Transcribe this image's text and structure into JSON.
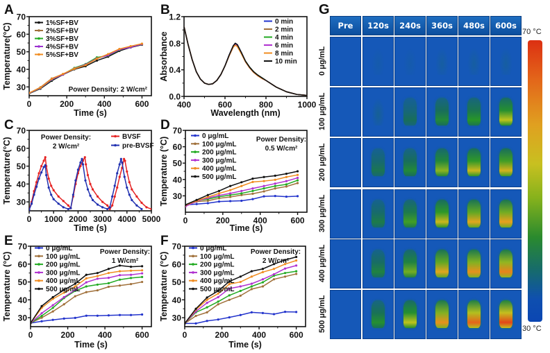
{
  "figure": {
    "panels": [
      "A",
      "B",
      "C",
      "D",
      "E",
      "F",
      "G"
    ]
  },
  "chart_data": [
    {
      "id": "A",
      "type": "line",
      "panel_letter": "A",
      "title": "",
      "xlabel": "Time (s)",
      "ylabel": "Temperature(°C)",
      "xlim": [
        0,
        650
      ],
      "ylim": [
        25,
        70
      ],
      "xticks": [
        0,
        200,
        400,
        600
      ],
      "yticks": [
        30,
        40,
        50,
        60,
        70
      ],
      "annotation": "Power Density: 2 W/cm²",
      "legend_position": "top-left",
      "x": [
        0,
        60,
        120,
        180,
        240,
        300,
        360,
        420,
        480,
        540,
        600
      ],
      "series": [
        {
          "name": "1%SF+BV",
          "color": "#111111",
          "values": [
            26.2,
            29.0,
            33.5,
            37.0,
            40.0,
            41.8,
            45.0,
            47.2,
            50.5,
            52.5,
            54.0
          ]
        },
        {
          "name": "2%SF+BV",
          "color": "#a0703a",
          "values": [
            26.5,
            29.8,
            34.8,
            37.3,
            40.2,
            42.5,
            46.0,
            48.5,
            51.5,
            53.0,
            54.5
          ]
        },
        {
          "name": "3%SF+BV",
          "color": "#22aa22",
          "values": [
            26.3,
            29.3,
            34.0,
            37.2,
            40.8,
            43.0,
            46.8,
            47.8,
            51.0,
            52.8,
            54.2
          ]
        },
        {
          "name": "4%SF+BV",
          "color": "#9b30d0",
          "values": [
            26.4,
            29.4,
            34.2,
            37.1,
            40.5,
            42.7,
            46.3,
            48.0,
            51.2,
            52.6,
            54.3
          ]
        },
        {
          "name": "5%SF+BV",
          "color": "#f08c20",
          "values": [
            26.6,
            29.6,
            34.6,
            37.4,
            40.4,
            42.4,
            46.1,
            48.7,
            51.6,
            53.2,
            54.6
          ]
        }
      ]
    },
    {
      "id": "B",
      "type": "line",
      "panel_letter": "B",
      "title": "",
      "xlabel": "Wavelength (nm)",
      "ylabel": "Absorbance",
      "xlim": [
        400,
        1000
      ],
      "ylim": [
        0,
        1.2
      ],
      "xticks": [
        400,
        600,
        800,
        1000
      ],
      "yticks": [
        0.0,
        0.4,
        0.8,
        1.2
      ],
      "ytick_labels": [
        "0.0",
        "0.4",
        "0.8",
        "1.2"
      ],
      "legend_position": "top-right",
      "x": [
        400,
        420,
        440,
        460,
        480,
        500,
        520,
        540,
        560,
        580,
        600,
        620,
        640,
        650,
        660,
        680,
        700,
        720,
        740,
        760,
        780,
        800,
        850,
        900,
        950,
        1000
      ],
      "series": [
        {
          "name": "0 min",
          "color": "#2233cc",
          "values": [
            1.05,
            0.78,
            0.55,
            0.37,
            0.26,
            0.2,
            0.18,
            0.19,
            0.24,
            0.33,
            0.46,
            0.62,
            0.76,
            0.8,
            0.78,
            0.66,
            0.53,
            0.44,
            0.37,
            0.32,
            0.28,
            0.24,
            0.14,
            0.07,
            0.03,
            0.015
          ]
        },
        {
          "name": "2 min",
          "color": "#a0703a",
          "values": [
            1.05,
            0.78,
            0.55,
            0.37,
            0.26,
            0.2,
            0.18,
            0.19,
            0.24,
            0.33,
            0.46,
            0.61,
            0.75,
            0.79,
            0.77,
            0.65,
            0.53,
            0.44,
            0.37,
            0.32,
            0.28,
            0.24,
            0.14,
            0.07,
            0.03,
            0.015
          ]
        },
        {
          "name": "4 min",
          "color": "#22aa22",
          "values": [
            1.05,
            0.78,
            0.55,
            0.37,
            0.26,
            0.2,
            0.18,
            0.19,
            0.24,
            0.33,
            0.46,
            0.61,
            0.75,
            0.79,
            0.77,
            0.65,
            0.53,
            0.44,
            0.37,
            0.32,
            0.28,
            0.24,
            0.14,
            0.07,
            0.03,
            0.015
          ]
        },
        {
          "name": "6 min",
          "color": "#b030d0",
          "values": [
            1.05,
            0.78,
            0.55,
            0.37,
            0.26,
            0.2,
            0.18,
            0.19,
            0.24,
            0.33,
            0.46,
            0.61,
            0.74,
            0.78,
            0.76,
            0.65,
            0.52,
            0.43,
            0.36,
            0.31,
            0.27,
            0.24,
            0.14,
            0.07,
            0.03,
            0.015
          ]
        },
        {
          "name": "8 min",
          "color": "#f08c20",
          "values": [
            1.05,
            0.78,
            0.55,
            0.37,
            0.26,
            0.2,
            0.18,
            0.19,
            0.24,
            0.33,
            0.46,
            0.61,
            0.74,
            0.77,
            0.75,
            0.64,
            0.52,
            0.43,
            0.36,
            0.31,
            0.27,
            0.24,
            0.14,
            0.07,
            0.03,
            0.015
          ]
        },
        {
          "name": "10 min",
          "color": "#111111",
          "values": [
            1.05,
            0.78,
            0.55,
            0.37,
            0.26,
            0.2,
            0.18,
            0.19,
            0.24,
            0.33,
            0.46,
            0.62,
            0.76,
            0.8,
            0.78,
            0.66,
            0.53,
            0.44,
            0.37,
            0.32,
            0.28,
            0.24,
            0.14,
            0.07,
            0.03,
            0.015
          ]
        }
      ]
    },
    {
      "id": "C",
      "type": "line",
      "panel_letter": "C",
      "title": "",
      "xlabel": "Time (s)",
      "ylabel": "Temperature(°C)",
      "xlim": [
        0,
        5000
      ],
      "ylim": [
        25,
        70
      ],
      "xticks": [
        0,
        1000,
        2000,
        3000,
        4000,
        5000
      ],
      "yticks": [
        30,
        40,
        50,
        60,
        70
      ],
      "annotation": "Power Density:\n2 W/cm²",
      "annotation_lines": [
        "Power Density:",
        "2 W/cm²"
      ],
      "legend_position": "top-right",
      "series": [
        {
          "name": "BVSF",
          "color": "#e52222",
          "x": [
            0,
            100,
            200,
            300,
            400,
            500,
            600,
            660,
            700,
            800,
            900,
            1000,
            1200,
            1400,
            1600,
            1700,
            1800,
            1900,
            2000,
            2100,
            2200,
            2280,
            2320,
            2400,
            2500,
            2600,
            2800,
            3000,
            3200,
            3300,
            3400,
            3500,
            3600,
            3700,
            3800,
            3880,
            3920,
            4000,
            4100,
            4200,
            4400,
            4600,
            4800,
            5000
          ],
          "values": [
            25.5,
            30,
            36,
            41,
            46,
            50,
            53,
            55,
            50,
            43,
            39,
            36.5,
            33,
            30.5,
            28,
            26.5,
            33,
            40,
            46,
            50,
            53,
            55,
            51,
            45,
            40,
            37,
            33,
            30,
            28,
            26,
            28,
            33,
            38,
            44,
            49,
            54,
            53,
            47,
            41,
            37,
            33,
            29.5,
            27,
            26
          ]
        },
        {
          "name": "pre-BVSF",
          "color": "#2030b0",
          "x": [
            0,
            100,
            200,
            300,
            400,
            500,
            600,
            660,
            700,
            800,
            900,
            1000,
            1200,
            1400,
            1600,
            1700,
            1800,
            1900,
            2000,
            2100,
            2160,
            2200,
            2300,
            2400,
            2500,
            2600,
            2800,
            3000,
            3200,
            3300,
            3400,
            3500,
            3600,
            3700,
            3760,
            3800,
            3900,
            4000,
            4100,
            4200,
            4400,
            4600
          ],
          "values": [
            25.5,
            29,
            34,
            38.5,
            43,
            46.5,
            49.5,
            50.5,
            45,
            38,
            34,
            31.5,
            29,
            27,
            26,
            26.5,
            34,
            42,
            48,
            52,
            54,
            51,
            42,
            37,
            33.5,
            31,
            28.5,
            27,
            26,
            27,
            33,
            39,
            46,
            51,
            54,
            52,
            44,
            38,
            34,
            31,
            28,
            26
          ]
        }
      ]
    },
    {
      "id": "D",
      "type": "line",
      "panel_letter": "D",
      "title": "",
      "xlabel": "Time (s)",
      "ylabel": "Temperature (°C)",
      "xlim": [
        0,
        650
      ],
      "ylim": [
        20,
        70
      ],
      "xticks": [
        0,
        200,
        400,
        600
      ],
      "yticks": [
        30,
        40,
        50,
        60,
        70
      ],
      "annotation": "Power Density:\n0.5 W/cm²",
      "annotation_lines": [
        "Power Density:",
        "0.5 W/cm²"
      ],
      "legend_position": "top-left",
      "x": [
        0,
        60,
        120,
        180,
        240,
        300,
        360,
        420,
        480,
        540,
        600
      ],
      "series": [
        {
          "name": "0 μg/mL",
          "color": "#2233cc",
          "values": [
            24.5,
            25.0,
            25.5,
            26.5,
            26.8,
            27.0,
            28.0,
            29.7,
            29.9,
            29.5,
            29.8
          ]
        },
        {
          "name": "100 μg/mL",
          "color": "#a0703a",
          "values": [
            24.0,
            26.5,
            27.0,
            28.5,
            29.3,
            30.5,
            31.3,
            32.7,
            34.5,
            35.7,
            37.8
          ]
        },
        {
          "name": "200 μg/mL",
          "color": "#22aa22",
          "values": [
            24.3,
            27.2,
            28.0,
            29.5,
            30.5,
            31.5,
            33.0,
            34.5,
            36.0,
            37.0,
            39.5
          ]
        },
        {
          "name": "300 μg/mL",
          "color": "#b030d0",
          "values": [
            23.5,
            26.8,
            28.7,
            30.3,
            31.5,
            33.0,
            34.5,
            36.0,
            37.5,
            39.0,
            41.0
          ]
        },
        {
          "name": "400 μg/mL",
          "color": "#f08c20",
          "values": [
            24.2,
            27.0,
            29.3,
            31.5,
            33.5,
            36.0,
            38.5,
            39.0,
            39.8,
            41.5,
            42.8
          ]
        },
        {
          "name": "500 μg/mL",
          "color": "#111111",
          "values": [
            24.5,
            27.5,
            30.5,
            33.0,
            36.0,
            38.3,
            40.5,
            41.5,
            42.3,
            43.5,
            45.0
          ]
        }
      ]
    },
    {
      "id": "E",
      "type": "line",
      "panel_letter": "E",
      "title": "",
      "xlabel": "Time (s)",
      "ylabel": "Temperature (°C)",
      "xlim": [
        0,
        650
      ],
      "ylim": [
        25,
        70
      ],
      "xticks": [
        0,
        200,
        400,
        600
      ],
      "yticks": [
        30,
        40,
        50,
        60,
        70
      ],
      "annotation": "Power Density:\n1 W/cm²",
      "annotation_lines": [
        "Power Density:",
        "1 W/cm²"
      ],
      "legend_position": "top-left",
      "x": [
        0,
        60,
        120,
        180,
        240,
        300,
        360,
        420,
        480,
        540,
        600
      ],
      "series": [
        {
          "name": "0 μg/mL",
          "color": "#2233cc",
          "values": [
            27.0,
            28.0,
            28.8,
            29.5,
            29.9,
            31.1,
            31.1,
            31.3,
            31.5,
            31.5,
            31.8
          ]
        },
        {
          "name": "100 μg/mL",
          "color": "#a0703a",
          "values": [
            27.0,
            30.0,
            33.5,
            37.5,
            42.0,
            44.3,
            45.3,
            47.3,
            48.0,
            48.8,
            50.0
          ]
        },
        {
          "name": "200 μg/mL",
          "color": "#22aa22",
          "values": [
            27.0,
            31.0,
            35.5,
            41.0,
            45.0,
            47.5,
            48.5,
            49.3,
            51.3,
            52.2,
            52.8
          ]
        },
        {
          "name": "300 μg/mL",
          "color": "#b030d0",
          "values": [
            27.0,
            32.5,
            37.0,
            41.5,
            45.5,
            49.8,
            51.8,
            52.3,
            53.8,
            54.0,
            54.8
          ]
        },
        {
          "name": "400 μg/mL",
          "color": "#f08c20",
          "values": [
            27.0,
            35.5,
            40.5,
            44.0,
            47.5,
            52.0,
            53.3,
            55.0,
            56.0,
            56.3,
            56.5
          ]
        },
        {
          "name": "500 μg/mL",
          "color": "#111111",
          "values": [
            27.0,
            36.5,
            41.5,
            45.5,
            49.0,
            54.0,
            55.0,
            57.3,
            59.2,
            58.5,
            58.8
          ]
        }
      ]
    },
    {
      "id": "F",
      "type": "line",
      "panel_letter": "F",
      "title": "",
      "xlabel": "Time (s)",
      "ylabel": "Temperature (°C)",
      "xlim": [
        0,
        650
      ],
      "ylim": [
        25,
        70
      ],
      "xticks": [
        0,
        200,
        400,
        600
      ],
      "yticks": [
        30,
        40,
        50,
        60,
        70
      ],
      "annotation": "Power Density:\n2 W/cm²",
      "annotation_lines": [
        "Power Density:",
        "2 W/cm²"
      ],
      "legend_position": "top-left",
      "x": [
        0,
        60,
        120,
        180,
        240,
        300,
        360,
        420,
        480,
        540,
        600
      ],
      "series": [
        {
          "name": "0 μg/mL",
          "color": "#2233cc",
          "values": [
            26.8,
            26.8,
            28.2,
            29.0,
            30.2,
            31.5,
            33.0,
            32.6,
            32.0,
            33.3,
            33.2
          ]
        },
        {
          "name": "100 μg/mL",
          "color": "#a0703a",
          "values": [
            26.8,
            31.0,
            33.0,
            37.5,
            40.0,
            42.3,
            46.0,
            47.5,
            51.5,
            53.0,
            54.5
          ]
        },
        {
          "name": "200 μg/mL",
          "color": "#22aa22",
          "values": [
            26.8,
            33.0,
            35.8,
            39.0,
            42.5,
            45.0,
            47.5,
            49.8,
            53.5,
            55.0,
            56.0
          ]
        },
        {
          "name": "300 μg/mL",
          "color": "#b030d0",
          "values": [
            26.8,
            33.5,
            38.3,
            41.5,
            46.3,
            47.5,
            49.0,
            51.5,
            54.3,
            57.5,
            59.2
          ]
        },
        {
          "name": "400 μg/mL",
          "color": "#f08c20",
          "values": [
            26.8,
            34.5,
            40.0,
            43.5,
            48.8,
            50.0,
            53.0,
            55.5,
            57.3,
            60.0,
            62.0
          ]
        },
        {
          "name": "500 μg/mL",
          "color": "#111111",
          "values": [
            26.8,
            35.0,
            41.3,
            45.0,
            50.3,
            53.0,
            56.0,
            57.3,
            60.0,
            62.3,
            64.0
          ]
        }
      ]
    },
    {
      "id": "G",
      "type": "heatmap",
      "panel_letter": "G",
      "title": "",
      "column_headers": [
        "Pre",
        "120s",
        "240s",
        "360s",
        "480s",
        "600s"
      ],
      "row_labels": [
        "0 μg/mL",
        "100 μg/mL",
        "200 μg/mL",
        "300 μg/mL",
        "400 μg/mL",
        "500 μg/mL"
      ],
      "colorbar": {
        "max_label": "70 °C",
        "min_label": "30 °C",
        "max": 70,
        "min": 30
      },
      "approx_peak_temperature_c": [
        [
          30,
          31,
          31,
          32,
          32,
          32
        ],
        [
          30,
          33,
          38,
          42,
          44,
          50
        ],
        [
          30,
          39,
          42,
          48,
          52,
          53
        ],
        [
          30,
          40,
          45,
          52,
          55,
          56
        ],
        [
          30,
          41,
          47,
          55,
          57,
          58
        ],
        [
          30,
          43,
          50,
          57,
          60,
          62
        ]
      ]
    }
  ]
}
